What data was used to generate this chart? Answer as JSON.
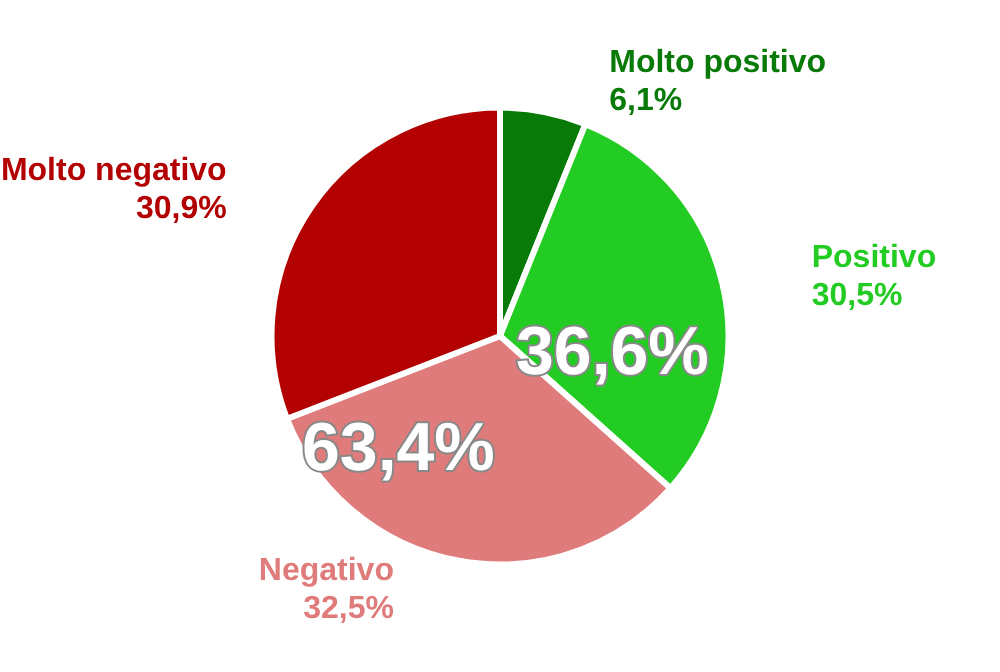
{
  "chart_data": {
    "type": "pie",
    "categories": [
      "Molto positivo",
      "Positivo",
      "Negativo",
      "Molto negativo"
    ],
    "values": [
      6.1,
      30.5,
      32.5,
      30.9
    ],
    "value_labels": [
      "6,1%",
      "30,5%",
      "32,5%",
      "30,9%"
    ],
    "colors": [
      "#087a08",
      "#22cc22",
      "#e07b7b",
      "#b30000"
    ],
    "annotations": [
      "63,4%",
      "36,6%"
    ],
    "legend": false
  }
}
